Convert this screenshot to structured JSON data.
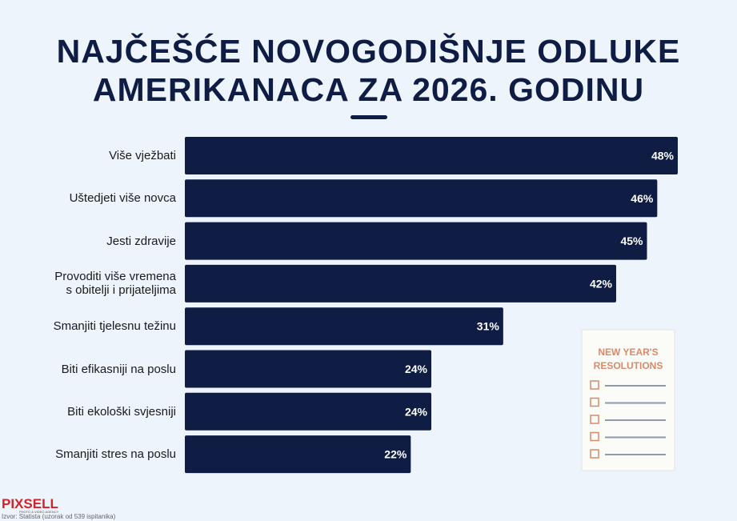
{
  "chart_data": {
    "type": "bar",
    "orientation": "horizontal",
    "title": "NAJČEŠĆE NOVOGODIŠNJE ODLUKE AMERIKANACA ZA 2026. GODINU",
    "categories": [
      "Više vježbati",
      "Uštedjeti više novca",
      "Jesti zdravije",
      "Provoditi više vremena\ns obitelji i prijateljima",
      "Smanjiti tjelesnu težinu",
      "Biti efikasniji na poslu",
      "Biti ekološki svjesniji",
      "Smanjiti stres na poslu"
    ],
    "values": [
      48,
      46,
      45,
      42,
      31,
      24,
      24,
      22
    ],
    "value_labels": [
      "48%",
      "46%",
      "45%",
      "42%",
      "31%",
      "24%",
      "24%",
      "22%"
    ],
    "color": "#0f1d44",
    "source": "Izvor: Statista (uzorak od 539 ispitanika)"
  },
  "logo": {
    "name": "PIXSELL",
    "tagline": "PHOTO & VIDEO AGENCY"
  },
  "illustration": {
    "lines": [
      "NEW YEAR'S",
      "RESOLUTIONS"
    ]
  }
}
